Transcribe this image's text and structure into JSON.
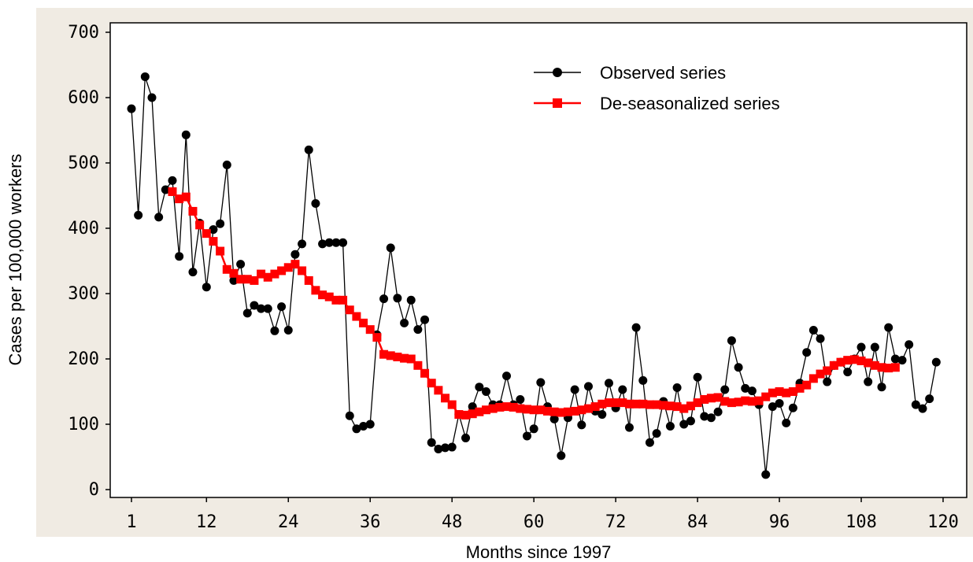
{
  "chart_data": {
    "type": "line",
    "xlabel": "Months since 1997",
    "ylabel": "Cases per 100,000 workers",
    "xlim": [
      0,
      120
    ],
    "ylim": [
      0,
      700
    ],
    "x_ticks": [
      1,
      12,
      24,
      36,
      48,
      60,
      72,
      84,
      96,
      108,
      120
    ],
    "y_ticks": [
      0,
      100,
      200,
      300,
      400,
      500,
      600,
      700
    ],
    "grid": false,
    "legend_position": "top-right",
    "series": [
      {
        "name": "Observed series",
        "color": "#000000",
        "marker": "circle",
        "x": [
          1,
          2,
          3,
          4,
          5,
          6,
          7,
          8,
          9,
          10,
          11,
          12,
          13,
          14,
          15,
          16,
          17,
          18,
          19,
          20,
          21,
          22,
          23,
          24,
          25,
          26,
          27,
          28,
          29,
          30,
          31,
          32,
          33,
          34,
          35,
          36,
          37,
          38,
          39,
          40,
          41,
          42,
          43,
          44,
          45,
          46,
          47,
          48,
          49,
          50,
          51,
          52,
          53,
          54,
          55,
          56,
          57,
          58,
          59,
          60,
          61,
          62,
          63,
          64,
          65,
          66,
          67,
          68,
          69,
          70,
          71,
          72,
          73,
          74,
          75,
          76,
          77,
          78,
          79,
          80,
          81,
          82,
          83,
          84,
          85,
          86,
          87,
          88,
          89,
          90,
          91,
          92,
          93,
          94,
          95,
          96,
          97,
          98,
          99,
          100,
          101,
          102,
          103,
          104,
          105,
          106,
          107,
          108,
          109,
          110,
          111,
          112,
          113,
          114,
          115,
          116,
          117,
          118,
          119
        ],
        "values": [
          583,
          420,
          632,
          600,
          417,
          459,
          473,
          357,
          543,
          333,
          408,
          310,
          398,
          407,
          497,
          320,
          345,
          270,
          282,
          277,
          277,
          243,
          280,
          244,
          360,
          376,
          520,
          438,
          376,
          378,
          378,
          378,
          113,
          93,
          97,
          100,
          237,
          292,
          370,
          293,
          255,
          290,
          245,
          260,
          72,
          62,
          64,
          65,
          115,
          79,
          127,
          157,
          150,
          130,
          130,
          174,
          130,
          138,
          82,
          93,
          164,
          127,
          108,
          52,
          110,
          153,
          99,
          158,
          120,
          115,
          163,
          125,
          153,
          95,
          248,
          167,
          72,
          86,
          135,
          97,
          156,
          100,
          105,
          172,
          112,
          110,
          119,
          153,
          228,
          187,
          155,
          151,
          130,
          23,
          127,
          132,
          102,
          125,
          163,
          210,
          244,
          231,
          165,
          190,
          195,
          180,
          200,
          218,
          165,
          218,
          157,
          248,
          200,
          198,
          222,
          130,
          124,
          139,
          195
        ]
      },
      {
        "name": "De-seasonalized series",
        "color": "#ff0000",
        "marker": "square",
        "x": [
          7,
          8,
          9,
          10,
          11,
          12,
          13,
          14,
          15,
          16,
          17,
          18,
          19,
          20,
          21,
          22,
          23,
          24,
          25,
          26,
          27,
          28,
          29,
          30,
          31,
          32,
          33,
          34,
          35,
          36,
          37,
          38,
          39,
          40,
          41,
          42,
          43,
          44,
          45,
          46,
          47,
          48,
          49,
          50,
          51,
          52,
          53,
          54,
          55,
          56,
          57,
          58,
          59,
          60,
          61,
          62,
          63,
          64,
          65,
          66,
          67,
          68,
          69,
          70,
          71,
          72,
          73,
          74,
          75,
          76,
          77,
          78,
          79,
          80,
          81,
          82,
          83,
          84,
          85,
          86,
          87,
          88,
          89,
          90,
          91,
          92,
          93,
          94,
          95,
          96,
          97,
          98,
          99,
          100,
          101,
          102,
          103,
          104,
          105,
          106,
          107,
          108,
          109,
          110,
          111,
          112,
          113
        ],
        "values": [
          456,
          445,
          448,
          426,
          405,
          392,
          380,
          365,
          337,
          331,
          322,
          322,
          320,
          330,
          325,
          330,
          335,
          340,
          345,
          335,
          320,
          305,
          298,
          295,
          290,
          290,
          275,
          265,
          255,
          245,
          233,
          207,
          205,
          203,
          201,
          200,
          190,
          178,
          163,
          152,
          140,
          130,
          115,
          114,
          116,
          119,
          122,
          124,
          126,
          127,
          126,
          124,
          123,
          122,
          122,
          120,
          119,
          118,
          119,
          120,
          122,
          124,
          127,
          131,
          133,
          133,
          133,
          131,
          131,
          131,
          130,
          130,
          129,
          128,
          127,
          124,
          128,
          133,
          138,
          140,
          141,
          135,
          133,
          134,
          136,
          135,
          136,
          142,
          148,
          150,
          148,
          150,
          155,
          160,
          170,
          177,
          182,
          190,
          195,
          198,
          199,
          197,
          194,
          190,
          187,
          186,
          187
        ]
      }
    ]
  }
}
